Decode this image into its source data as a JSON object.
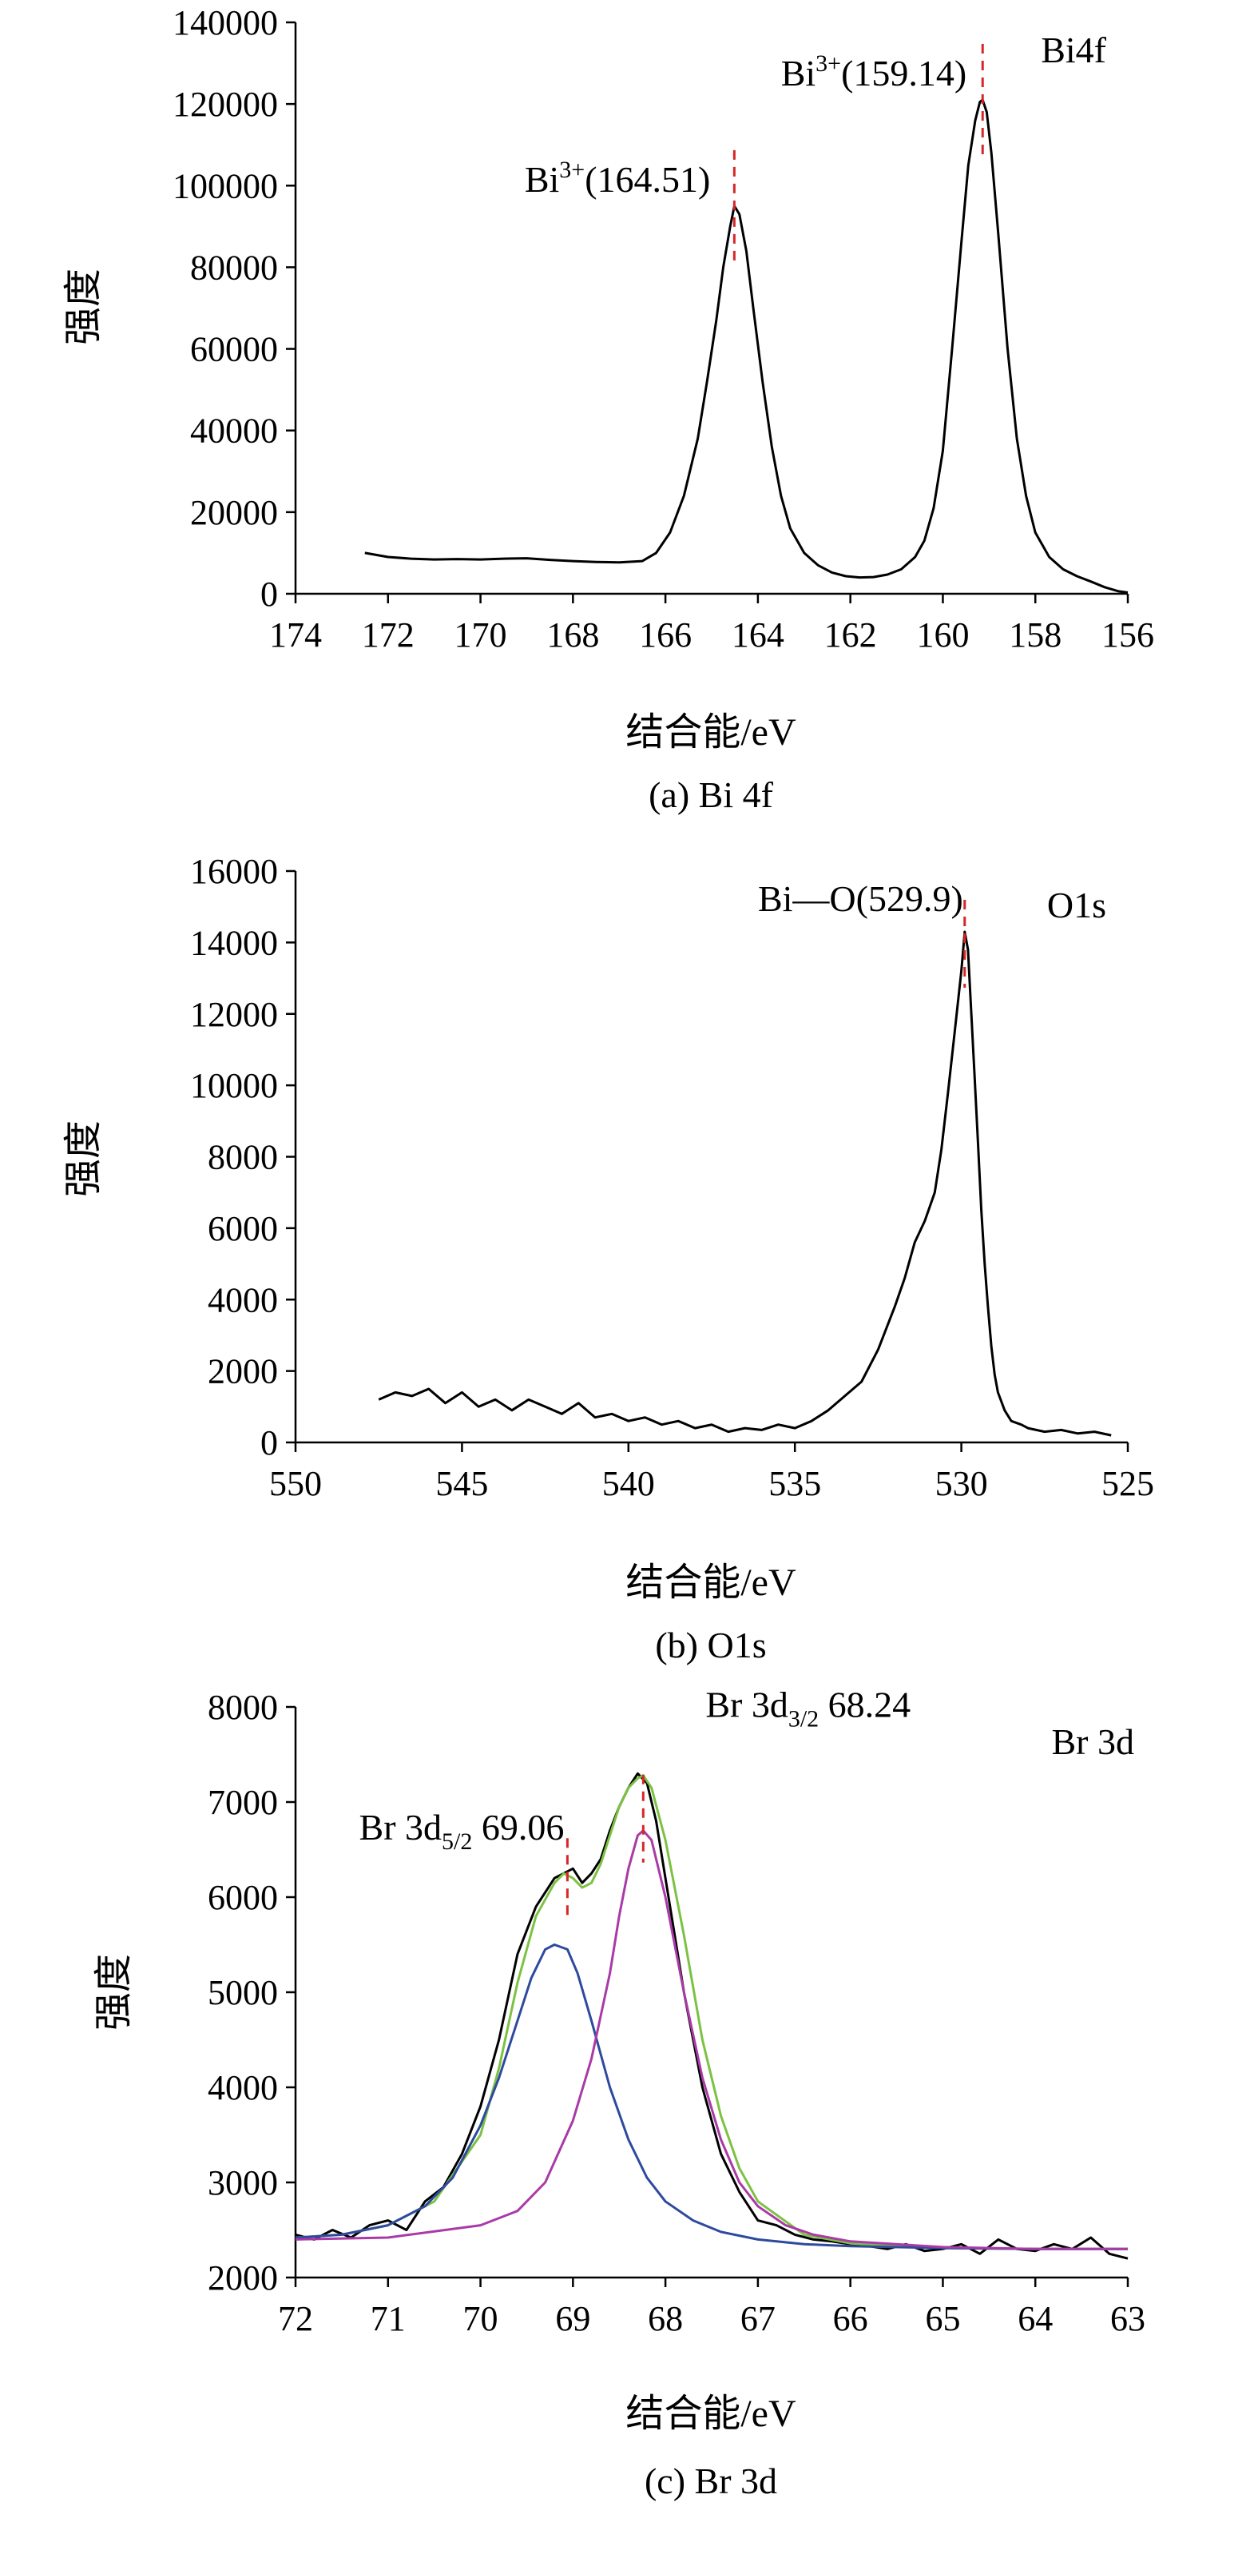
{
  "chart_data": [
    {
      "type": "line",
      "panel": "a",
      "caption": "(a) Bi 4f",
      "corner_label": "Bi4f",
      "xlabel": "结合能/eV",
      "ylabel": "强度",
      "xlim": [
        174,
        156
      ],
      "ylim": [
        0,
        140000
      ],
      "x_ticks": [
        174,
        172,
        170,
        168,
        166,
        164,
        162,
        160,
        158,
        156
      ],
      "y_ticks": [
        0,
        20000,
        40000,
        60000,
        80000,
        100000,
        120000,
        140000
      ],
      "x_tick_labels": [
        "174",
        "172",
        "170",
        "168",
        "166",
        "164",
        "162",
        "160",
        "158",
        "156"
      ],
      "y_tick_labels": [
        "0",
        "20000",
        "40000",
        "60000",
        "80000",
        "100000",
        "120000",
        "140000"
      ],
      "grid": false,
      "series": [
        {
          "color": "#000000",
          "x": [
            172.5,
            172.0,
            171.5,
            171.0,
            170.5,
            170.0,
            169.5,
            169.0,
            168.5,
            168.0,
            167.5,
            167.0,
            166.5,
            166.2,
            165.9,
            165.6,
            165.3,
            165.1,
            164.9,
            164.75,
            164.6,
            164.51,
            164.4,
            164.25,
            164.1,
            163.9,
            163.7,
            163.5,
            163.3,
            163.0,
            162.7,
            162.4,
            162.1,
            161.8,
            161.5,
            161.2,
            160.9,
            160.6,
            160.4,
            160.2,
            160.0,
            159.8,
            159.6,
            159.45,
            159.3,
            159.2,
            159.14,
            159.05,
            158.95,
            158.8,
            158.6,
            158.4,
            158.2,
            158.0,
            157.7,
            157.4,
            157.1,
            156.8,
            156.5,
            156.2,
            156.0
          ],
          "y": [
            10000,
            9000,
            8600,
            8400,
            8500,
            8400,
            8600,
            8700,
            8300,
            8000,
            7800,
            7700,
            8000,
            10000,
            15000,
            24000,
            38000,
            52000,
            67000,
            80000,
            90000,
            95000,
            93000,
            84000,
            70000,
            52000,
            36000,
            24000,
            16000,
            10000,
            7000,
            5200,
            4300,
            4000,
            4100,
            4700,
            6000,
            9000,
            13000,
            21000,
            35000,
            60000,
            86000,
            105000,
            116000,
            120500,
            121000,
            118000,
            108000,
            88000,
            60000,
            38000,
            24000,
            15000,
            9000,
            6000,
            4300,
            3000,
            1600,
            600,
            300
          ]
        }
      ],
      "annotations": [
        {
          "text_main": "Bi",
          "text_sup": "3+",
          "text_rest": "(164.51)",
          "x": 164.51,
          "y": 95000,
          "dash_color": "#d62728"
        },
        {
          "text_main": "Bi",
          "text_sup": "3+",
          "text_rest": "(159.14)",
          "x": 159.14,
          "y": 121000,
          "dash_color": "#d62728"
        }
      ]
    },
    {
      "type": "line",
      "panel": "b",
      "caption": "(b) O1s",
      "corner_label": "O1s",
      "xlabel": "结合能/eV",
      "ylabel": "强度",
      "xlim": [
        550,
        525
      ],
      "ylim": [
        0,
        16000
      ],
      "x_ticks": [
        550,
        545,
        540,
        535,
        530,
        525
      ],
      "y_ticks": [
        0,
        2000,
        4000,
        6000,
        8000,
        10000,
        12000,
        14000,
        16000
      ],
      "x_tick_labels": [
        "550",
        "545",
        "540",
        "535",
        "530",
        "525"
      ],
      "y_tick_labels": [
        "0",
        "2000",
        "4000",
        "6000",
        "8000",
        "10000",
        "12000",
        "14000",
        "16000"
      ],
      "grid": false,
      "series": [
        {
          "color": "#000000",
          "x": [
            547.5,
            547.0,
            546.5,
            546.0,
            545.5,
            545.0,
            544.5,
            544.0,
            543.5,
            543.0,
            542.5,
            542.0,
            541.5,
            541.0,
            540.5,
            540.0,
            539.5,
            539.0,
            538.5,
            538.0,
            537.5,
            537.0,
            536.5,
            536.0,
            535.5,
            535.0,
            534.5,
            534.0,
            533.5,
            533.0,
            532.5,
            532.0,
            531.7,
            531.4,
            531.1,
            530.8,
            530.6,
            530.4,
            530.2,
            530.0,
            529.9,
            529.8,
            529.7,
            529.6,
            529.5,
            529.4,
            529.3,
            529.2,
            529.1,
            529.0,
            528.9,
            528.7,
            528.5,
            528.2,
            528.0,
            527.5,
            527.0,
            526.5,
            526.0,
            525.5
          ],
          "y": [
            1200,
            1400,
            1300,
            1500,
            1100,
            1400,
            1000,
            1200,
            900,
            1200,
            1000,
            800,
            1100,
            700,
            800,
            600,
            700,
            500,
            600,
            400,
            500,
            300,
            400,
            350,
            500,
            400,
            600,
            900,
            1300,
            1700,
            2600,
            3800,
            4600,
            5600,
            6200,
            7000,
            8200,
            9800,
            11500,
            13200,
            14300,
            13800,
            12000,
            10200,
            8400,
            6500,
            5000,
            3800,
            2700,
            1900,
            1400,
            900,
            600,
            500,
            400,
            300,
            350,
            250,
            300,
            200
          ]
        }
      ],
      "annotations": [
        {
          "text_main": "Bi—O(529.9)",
          "text_sup": "",
          "text_rest": "",
          "x": 529.9,
          "y": 14300,
          "dash_color": "#d62728"
        }
      ]
    },
    {
      "type": "line",
      "panel": "c",
      "caption": "(c) Br 3d",
      "corner_label": "Br 3d",
      "xlabel": "结合能/eV",
      "ylabel": "强度",
      "xlim": [
        72,
        63
      ],
      "ylim": [
        2000,
        8000
      ],
      "x_ticks": [
        72,
        71,
        70,
        69,
        68,
        67,
        66,
        65,
        64,
        63
      ],
      "y_ticks": [
        2000,
        3000,
        4000,
        5000,
        6000,
        7000,
        8000
      ],
      "x_tick_labels": [
        "72",
        "71",
        "70",
        "69",
        "68",
        "67",
        "66",
        "65",
        "64",
        "63"
      ],
      "y_tick_labels": [
        "2000",
        "3000",
        "4000",
        "5000",
        "6000",
        "7000",
        "8000"
      ],
      "grid": false,
      "series": [
        {
          "color": "#000000",
          "x": [
            72.0,
            71.8,
            71.6,
            71.4,
            71.2,
            71.0,
            70.8,
            70.6,
            70.4,
            70.2,
            70.0,
            69.8,
            69.6,
            69.4,
            69.2,
            69.0,
            68.9,
            68.8,
            68.7,
            68.6,
            68.5,
            68.4,
            68.3,
            68.2,
            68.1,
            68.0,
            67.8,
            67.6,
            67.4,
            67.2,
            67.0,
            66.8,
            66.6,
            66.4,
            66.2,
            66.0,
            65.8,
            65.6,
            65.4,
            65.2,
            65.0,
            64.8,
            64.6,
            64.4,
            64.2,
            64.0,
            63.8,
            63.6,
            63.4,
            63.2,
            63.0
          ],
          "y": [
            2450,
            2400,
            2500,
            2420,
            2550,
            2600,
            2500,
            2800,
            2950,
            3300,
            3800,
            4500,
            5400,
            5900,
            6200,
            6300,
            6150,
            6250,
            6400,
            6700,
            6950,
            7150,
            7300,
            7200,
            6800,
            6200,
            5000,
            4000,
            3300,
            2900,
            2600,
            2550,
            2450,
            2400,
            2380,
            2350,
            2330,
            2300,
            2350,
            2280,
            2300,
            2350,
            2250,
            2400,
            2300,
            2280,
            2350,
            2300,
            2420,
            2250,
            2200
          ]
        },
        {
          "color": "#7cc242",
          "x": [
            72.0,
            71.5,
            71.0,
            70.5,
            70.0,
            69.8,
            69.6,
            69.4,
            69.2,
            69.1,
            69.0,
            68.9,
            68.8,
            68.7,
            68.6,
            68.5,
            68.4,
            68.3,
            68.24,
            68.15,
            68.0,
            67.8,
            67.6,
            67.4,
            67.2,
            67.0,
            66.5,
            66.0,
            65.0,
            64.0,
            63.0
          ],
          "y": [
            2420,
            2450,
            2550,
            2800,
            3500,
            4200,
            5100,
            5800,
            6150,
            6250,
            6200,
            6100,
            6150,
            6350,
            6650,
            6950,
            7150,
            7250,
            7280,
            7150,
            6600,
            5600,
            4500,
            3700,
            3150,
            2800,
            2450,
            2360,
            2310,
            2300,
            2300
          ]
        },
        {
          "color": "#2e4a9e",
          "x": [
            72.0,
            71.5,
            71.0,
            70.6,
            70.3,
            70.0,
            69.8,
            69.6,
            69.45,
            69.3,
            69.2,
            69.06,
            68.95,
            68.8,
            68.6,
            68.4,
            68.2,
            68.0,
            67.7,
            67.4,
            67.0,
            66.5,
            66.0,
            65.0,
            64.0,
            63.0
          ],
          "y": [
            2420,
            2450,
            2550,
            2750,
            3050,
            3600,
            4100,
            4700,
            5150,
            5450,
            5500,
            5450,
            5200,
            4700,
            4000,
            3450,
            3050,
            2800,
            2600,
            2480,
            2400,
            2350,
            2330,
            2310,
            2300,
            2300
          ]
        },
        {
          "color": "#a93aa6",
          "x": [
            72.0,
            71.0,
            70.0,
            69.6,
            69.3,
            69.0,
            68.8,
            68.6,
            68.5,
            68.4,
            68.3,
            68.24,
            68.15,
            68.0,
            67.8,
            67.6,
            67.4,
            67.2,
            67.0,
            66.7,
            66.4,
            66.0,
            65.0,
            64.0,
            63.0
          ],
          "y": [
            2400,
            2420,
            2550,
            2700,
            3000,
            3650,
            4300,
            5200,
            5800,
            6300,
            6650,
            6700,
            6600,
            6000,
            5000,
            4100,
            3450,
            3000,
            2750,
            2550,
            2450,
            2380,
            2320,
            2300,
            2300
          ]
        }
      ],
      "annotations": [
        {
          "text_main": "Br 3d",
          "text_sup": "",
          "text_sub": "5/2",
          "text_rest": " 69.06",
          "x": 69.06,
          "y": 6200,
          "dash_color": "#d62728"
        },
        {
          "text_main": "Br 3d",
          "text_sup": "",
          "text_sub": "3/2",
          "text_rest": " 68.24",
          "x": 68.24,
          "y": 6700,
          "dash_color": "#d62728"
        }
      ]
    }
  ]
}
